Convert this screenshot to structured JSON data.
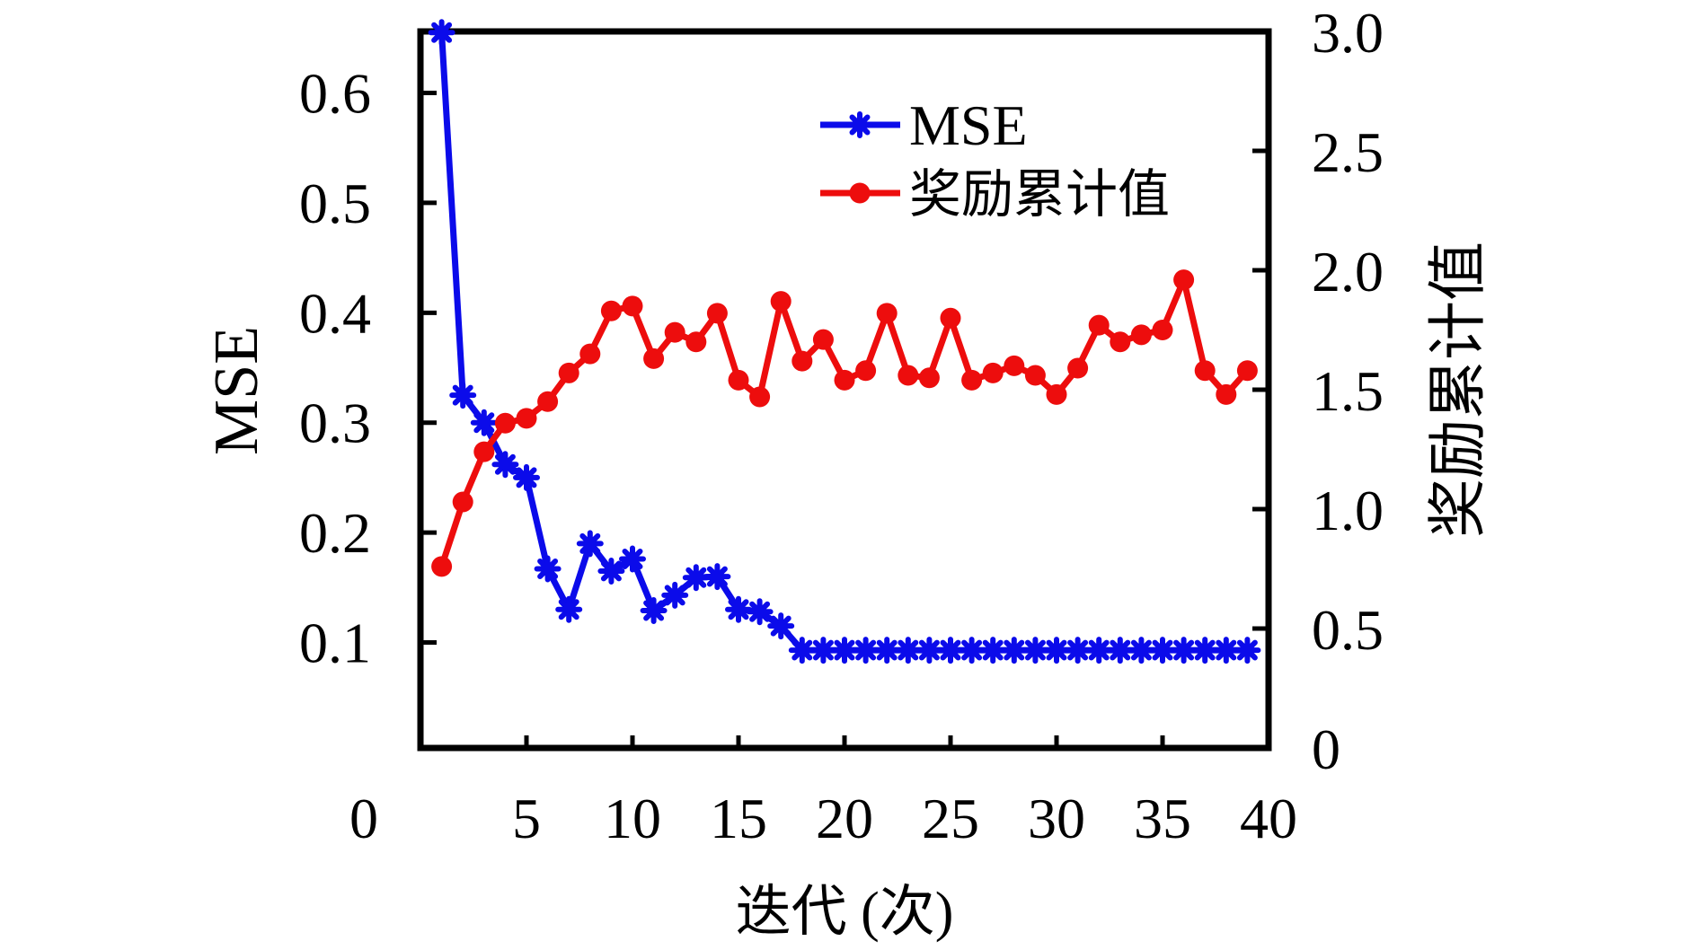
{
  "figure": {
    "background": "#ffffff",
    "legend": {
      "items": [
        {
          "label": "MSE",
          "series": "mse",
          "marker": "asterisk"
        },
        {
          "label": "奖励累计值",
          "series": "reward",
          "marker": "circle"
        }
      ]
    },
    "x_axis": {
      "title": "迭代 (次)",
      "tick_values": [
        0,
        5,
        10,
        15,
        20,
        25,
        30,
        35,
        40
      ],
      "tick_labels": [
        "0",
        "5",
        "10",
        "15",
        "20",
        "25",
        "30",
        "35",
        "40"
      ]
    },
    "y_left_axis": {
      "title": "MSE",
      "tick_values": [
        0.1,
        0.2,
        0.3,
        0.4,
        0.5,
        0.6
      ],
      "tick_labels": [
        "0.1",
        "0.2",
        "0.3",
        "0.4",
        "0.5",
        "0.6"
      ]
    },
    "y_right_axis": {
      "title": "奖励累计值",
      "tick_values": [
        0,
        0.5,
        1.0,
        1.5,
        2.0,
        2.5,
        3.0
      ],
      "tick_labels": [
        "0",
        "0.5",
        "1.0",
        "1.5",
        "2.0",
        "2.5",
        "3.0"
      ]
    }
  },
  "chart_data": {
    "type": "line",
    "title": "",
    "xlabel": "迭代 (次)",
    "ylabel_left": "MSE",
    "ylabel_right": "奖励累计值",
    "xlim": [
      0,
      40
    ],
    "ylim_left": [
      0.004,
      0.656
    ],
    "ylim_right": [
      0,
      3.0
    ],
    "grid": false,
    "legend_position": "upper-center",
    "x": [
      1,
      2,
      3,
      4,
      5,
      6,
      7,
      8,
      9,
      10,
      11,
      12,
      13,
      14,
      15,
      16,
      17,
      18,
      19,
      20,
      21,
      22,
      23,
      24,
      25,
      26,
      27,
      28,
      29,
      30,
      31,
      32,
      33,
      34,
      35,
      36,
      37,
      38,
      39
    ],
    "series": [
      {
        "name": "MSE",
        "axis": "left",
        "color": "#0b0bea",
        "marker": "asterisk",
        "values": [
          0.655,
          0.325,
          0.3,
          0.262,
          0.25,
          0.167,
          0.13,
          0.19,
          0.165,
          0.176,
          0.129,
          0.143,
          0.159,
          0.16,
          0.13,
          0.128,
          0.115,
          0.093,
          0.093,
          0.093,
          0.093,
          0.093,
          0.093,
          0.093,
          0.093,
          0.093,
          0.093,
          0.093,
          0.093,
          0.093,
          0.093,
          0.093,
          0.093,
          0.093,
          0.093,
          0.093,
          0.093,
          0.093,
          0.093
        ]
      },
      {
        "name": "奖励累计值",
        "axis": "right",
        "color": "#ed0d0d",
        "marker": "circle",
        "values": [
          0.76,
          1.03,
          1.24,
          1.36,
          1.38,
          1.45,
          1.57,
          1.65,
          1.83,
          1.85,
          1.63,
          1.74,
          1.7,
          1.82,
          1.54,
          1.47,
          1.87,
          1.62,
          1.71,
          1.54,
          1.58,
          1.82,
          1.56,
          1.55,
          1.8,
          1.54,
          1.57,
          1.6,
          1.56,
          1.48,
          1.59,
          1.77,
          1.7,
          1.73,
          1.75,
          1.96,
          1.58,
          1.48,
          1.58
        ]
      }
    ]
  }
}
